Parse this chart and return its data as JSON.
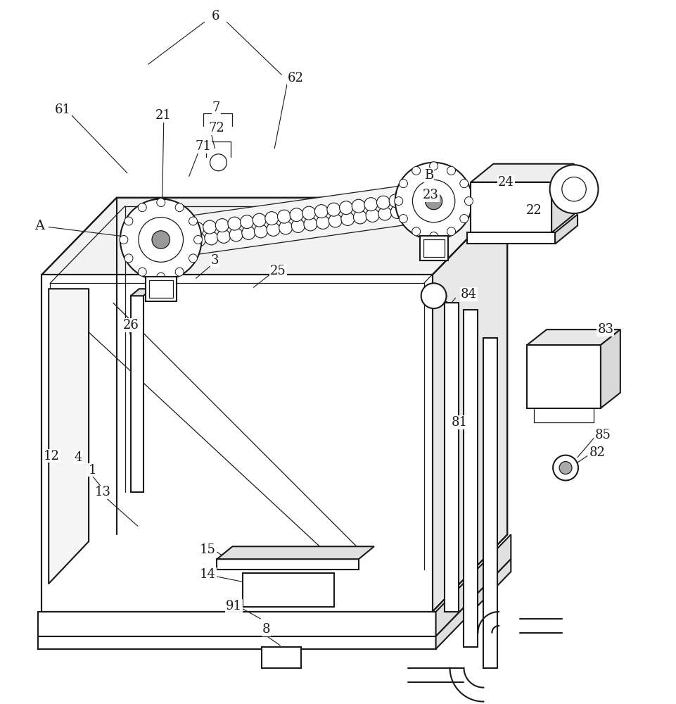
{
  "background_color": "#ffffff",
  "line_color": "#1a1a1a",
  "lw_main": 1.5,
  "lw_thin": 0.9,
  "lw_leader": 0.8,
  "label_fontsize": 13,
  "figsize": [
    9.61,
    10.0
  ],
  "dpi": 100
}
